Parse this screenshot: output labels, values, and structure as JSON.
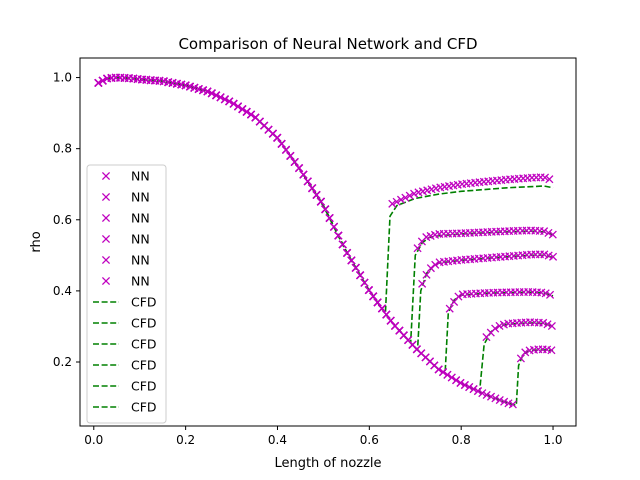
{
  "chart_data": {
    "type": "line",
    "title": "Comparison of Neural Network and CFD",
    "xlabel": "Length of nozzle",
    "ylabel": "rho",
    "xlim": [
      -0.03,
      1.05
    ],
    "ylim": [
      0.02,
      1.055
    ],
    "xticks": [
      0.0,
      0.2,
      0.4,
      0.6,
      0.8,
      1.0
    ],
    "xtick_labels": [
      "0.0",
      "0.2",
      "0.4",
      "0.6",
      "0.8",
      "1.0"
    ],
    "yticks": [
      0.2,
      0.4,
      0.6,
      0.8,
      1.0
    ],
    "ytick_labels": [
      "0.2",
      "0.4",
      "0.6",
      "0.8",
      "1.0"
    ],
    "grid": false,
    "legend": {
      "position": "center-left",
      "entries": [
        "NN",
        "NN",
        "NN",
        "NN",
        "NN",
        "NN",
        "CFD",
        "CFD",
        "CFD",
        "CFD",
        "CFD",
        "CFD"
      ]
    },
    "colors": {
      "nn": "#bf00bf",
      "cfd": "#008000",
      "axis": "#000000"
    },
    "common_profile": {
      "x": [
        0.01,
        0.03,
        0.05,
        0.08,
        0.1,
        0.15,
        0.2,
        0.25,
        0.3,
        0.35,
        0.4,
        0.45,
        0.5,
        0.55,
        0.6,
        0.65,
        0.7,
        0.75,
        0.8,
        0.85,
        0.9,
        0.92
      ],
      "y": [
        0.985,
        0.998,
        1.0,
        0.998,
        0.995,
        0.99,
        0.978,
        0.96,
        0.93,
        0.89,
        0.83,
        0.74,
        0.64,
        0.51,
        0.4,
        0.31,
        0.24,
        0.18,
        0.14,
        0.11,
        0.085,
        0.078
      ]
    },
    "series": [
      {
        "name": "NN",
        "kind": "nn",
        "shock_x": 0.637,
        "x": [
          0.65,
          0.7,
          0.75,
          0.8,
          0.85,
          0.9,
          0.95,
          0.98,
          1.0
        ],
        "y": [
          0.645,
          0.675,
          0.69,
          0.7,
          0.707,
          0.713,
          0.718,
          0.72,
          0.71
        ]
      },
      {
        "name": "NN",
        "kind": "nn",
        "shock_x": 0.695,
        "x": [
          0.705,
          0.72,
          0.75,
          0.8,
          0.85,
          0.9,
          0.95,
          0.98,
          1.0
        ],
        "y": [
          0.52,
          0.55,
          0.56,
          0.562,
          0.565,
          0.568,
          0.57,
          0.568,
          0.558
        ]
      },
      {
        "name": "NN",
        "kind": "nn",
        "shock_x": 0.705,
        "x": [
          0.715,
          0.73,
          0.75,
          0.8,
          0.85,
          0.9,
          0.95,
          0.98,
          1.0
        ],
        "y": [
          0.42,
          0.46,
          0.48,
          0.487,
          0.492,
          0.497,
          0.502,
          0.503,
          0.496
        ]
      },
      {
        "name": "NN",
        "kind": "nn",
        "shock_x": 0.765,
        "x": [
          0.775,
          0.79,
          0.8,
          0.85,
          0.9,
          0.95,
          0.98,
          1.0
        ],
        "y": [
          0.35,
          0.38,
          0.39,
          0.394,
          0.396,
          0.397,
          0.395,
          0.386
        ]
      },
      {
        "name": "NN",
        "kind": "nn",
        "shock_x": 0.845,
        "x": [
          0.855,
          0.87,
          0.88,
          0.9,
          0.95,
          0.98,
          1.0
        ],
        "y": [
          0.27,
          0.29,
          0.3,
          0.308,
          0.312,
          0.31,
          0.3
        ]
      },
      {
        "name": "NN",
        "kind": "nn",
        "shock_x": 0.92,
        "x": [
          0.93,
          0.94,
          0.95,
          0.97,
          0.99,
          1.0
        ],
        "y": [
          0.21,
          0.228,
          0.233,
          0.236,
          0.235,
          0.232
        ]
      },
      {
        "name": "CFD",
        "kind": "cfd",
        "shock_x": 0.635,
        "x": [
          0.645,
          0.66,
          0.7,
          0.75,
          0.8,
          0.85,
          0.9,
          0.95,
          0.98,
          1.0
        ],
        "y": [
          0.61,
          0.64,
          0.66,
          0.672,
          0.68,
          0.685,
          0.69,
          0.693,
          0.695,
          0.69
        ]
      },
      {
        "name": "CFD",
        "kind": "cfd",
        "shock_x": 0.69,
        "x": [
          0.7,
          0.715,
          0.73,
          0.75,
          0.8,
          0.85,
          0.9,
          0.95,
          0.98,
          1.0
        ],
        "y": [
          0.5,
          0.535,
          0.55,
          0.555,
          0.56,
          0.563,
          0.566,
          0.568,
          0.566,
          0.558
        ]
      },
      {
        "name": "CFD",
        "kind": "cfd",
        "shock_x": 0.705,
        "x": [
          0.712,
          0.725,
          0.74,
          0.75,
          0.8,
          0.85,
          0.9,
          0.95,
          0.98,
          1.0
        ],
        "y": [
          0.4,
          0.45,
          0.47,
          0.478,
          0.486,
          0.491,
          0.496,
          0.5,
          0.5,
          0.494
        ]
      },
      {
        "name": "CFD",
        "kind": "cfd",
        "shock_x": 0.765,
        "x": [
          0.772,
          0.785,
          0.8,
          0.85,
          0.9,
          0.95,
          0.98,
          1.0
        ],
        "y": [
          0.34,
          0.375,
          0.388,
          0.393,
          0.395,
          0.396,
          0.394,
          0.386
        ]
      },
      {
        "name": "CFD",
        "kind": "cfd",
        "shock_x": 0.84,
        "x": [
          0.85,
          0.865,
          0.88,
          0.9,
          0.95,
          0.98,
          1.0
        ],
        "y": [
          0.25,
          0.285,
          0.3,
          0.306,
          0.31,
          0.308,
          0.3
        ]
      },
      {
        "name": "CFD",
        "kind": "cfd",
        "shock_x": 0.92,
        "x": [
          0.925,
          0.935,
          0.95,
          0.97,
          0.99,
          1.0
        ],
        "y": [
          0.19,
          0.222,
          0.232,
          0.234,
          0.234,
          0.231
        ]
      }
    ]
  }
}
